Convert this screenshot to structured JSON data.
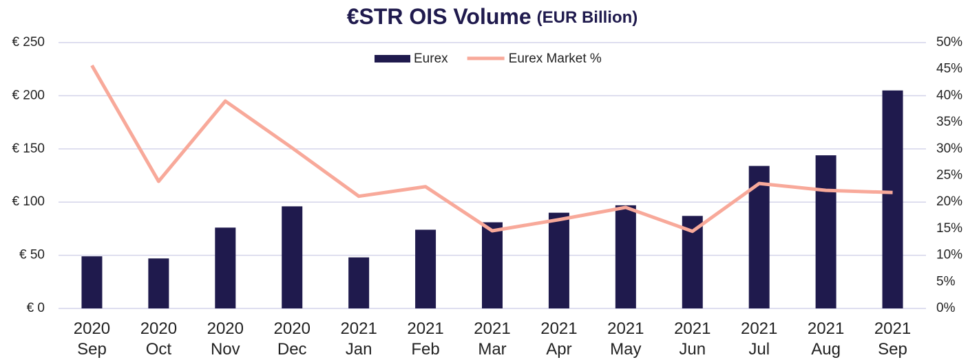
{
  "chart_data": {
    "type": "bar_line",
    "title": "€STR OIS Volume",
    "subtitle": "(EUR Billion)",
    "categories": [
      "2020 Sep",
      "2020 Oct",
      "2020 Nov",
      "2020 Dec",
      "2021 Jan",
      "2021 Feb",
      "2021 Mar",
      "2021 Apr",
      "2021 May",
      "2021 Jun",
      "2021 Jul",
      "2021 Aug",
      "2021 Sep"
    ],
    "series": [
      {
        "name": "Eurex",
        "type": "bar",
        "color": "#1f1a4d",
        "values": [
          49,
          47,
          76,
          96,
          48,
          74,
          81,
          90,
          97,
          87,
          134,
          144,
          205
        ]
      },
      {
        "name": "Eurex Market %",
        "type": "line",
        "axis": "y2",
        "color": "#f8a99a",
        "values": [
          45.7,
          23.9,
          39.0,
          30.2,
          21.1,
          22.9,
          14.6,
          16.7,
          19.0,
          14.5,
          23.5,
          22.2,
          21.8
        ]
      }
    ],
    "ylim": [
      0,
      250
    ],
    "yticks": [
      {
        "value": 0,
        "label": "€ 0"
      },
      {
        "value": 50,
        "label": "€ 50"
      },
      {
        "value": 100,
        "label": "€ 100"
      },
      {
        "value": 150,
        "label": "€ 150"
      },
      {
        "value": 200,
        "label": "€ 200"
      },
      {
        "value": 250,
        "label": "€ 250"
      }
    ],
    "y2lim": [
      0,
      50
    ],
    "y2ticks": [
      {
        "value": 0,
        "label": "0%"
      },
      {
        "value": 5,
        "label": "5%"
      },
      {
        "value": 10,
        "label": "10%"
      },
      {
        "value": 15,
        "label": "15%"
      },
      {
        "value": 20,
        "label": "20%"
      },
      {
        "value": 25,
        "label": "25%"
      },
      {
        "value": 30,
        "label": "30%"
      },
      {
        "value": 35,
        "label": "35%"
      },
      {
        "value": 40,
        "label": "40%"
      },
      {
        "value": 45,
        "label": "45%"
      },
      {
        "value": 50,
        "label": "50%"
      }
    ],
    "grid": true,
    "legend": "top"
  }
}
